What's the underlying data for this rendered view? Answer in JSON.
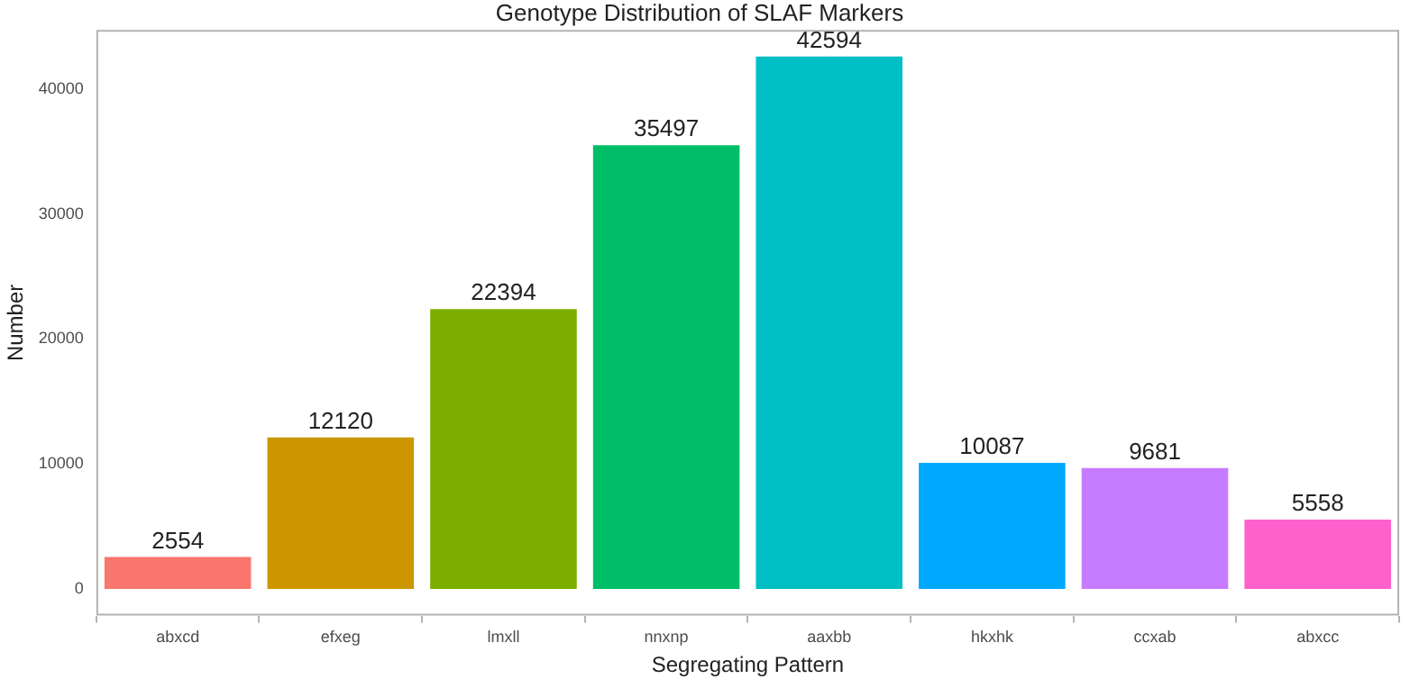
{
  "chart_data": {
    "type": "bar",
    "title": "Genotype Distribution of SLAF Markers",
    "xlabel": "Segregating Pattern",
    "ylabel": "Number",
    "categories": [
      "abxcd",
      "efxeg",
      "lmxll",
      "nnxnp",
      "aaxbb",
      "hkxhk",
      "ccxab",
      "abxcc"
    ],
    "values": [
      2554,
      12120,
      22394,
      35497,
      42594,
      10087,
      9681,
      5558
    ],
    "colors": [
      "#f8766d",
      "#cd9600",
      "#7cae00",
      "#00be67",
      "#00bfc4",
      "#00a9ff",
      "#c77cff",
      "#ff61cc"
    ],
    "ylim": [
      -2130,
      44724
    ],
    "yticks": [
      0,
      10000,
      20000,
      30000,
      40000
    ],
    "grid": false,
    "legend": false,
    "data_labels": true
  }
}
